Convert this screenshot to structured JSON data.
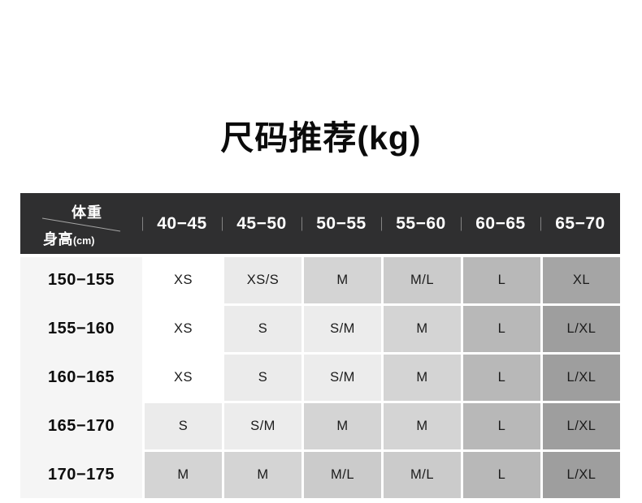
{
  "chart_data": {
    "type": "table",
    "title": "尺码推荐(kg)",
    "corner": {
      "columns_label": "体重",
      "rows_label": "身高",
      "rows_unit": "(cm)"
    },
    "columns": [
      "40−45",
      "45−50",
      "50−55",
      "55−60",
      "60−65",
      "65−70"
    ],
    "rows": [
      "150−155",
      "155−160",
      "160−165",
      "165−170",
      "170−175"
    ],
    "cells": [
      [
        "XS",
        "XS/S",
        "M",
        "M/L",
        "L",
        "XL"
      ],
      [
        "XS",
        "S",
        "S/M",
        "M",
        "L",
        "L/XL"
      ],
      [
        "XS",
        "S",
        "S/M",
        "M",
        "L",
        "L/XL"
      ],
      [
        "S",
        "S/M",
        "M",
        "M",
        "L",
        "L/XL"
      ],
      [
        "M",
        "M",
        "M/L",
        "M/L",
        "L",
        "L/XL"
      ]
    ]
  },
  "style": {
    "header_background": "#2f2f30",
    "header_text_color": "#ffffff",
    "label_column_background": "#f5f5f5",
    "page_background": "#ffffff",
    "size_colors": {
      "XS": "#ffffff",
      "XS/S": "#eaeaea",
      "S": "#ebebeb",
      "S/M": "#ececec",
      "M": "#d4d4d4",
      "M/L": "#cbcbcb",
      "L": "#b8b8b8",
      "XL": "#a5a5a5",
      "L/XL": "#9e9e9e"
    }
  }
}
